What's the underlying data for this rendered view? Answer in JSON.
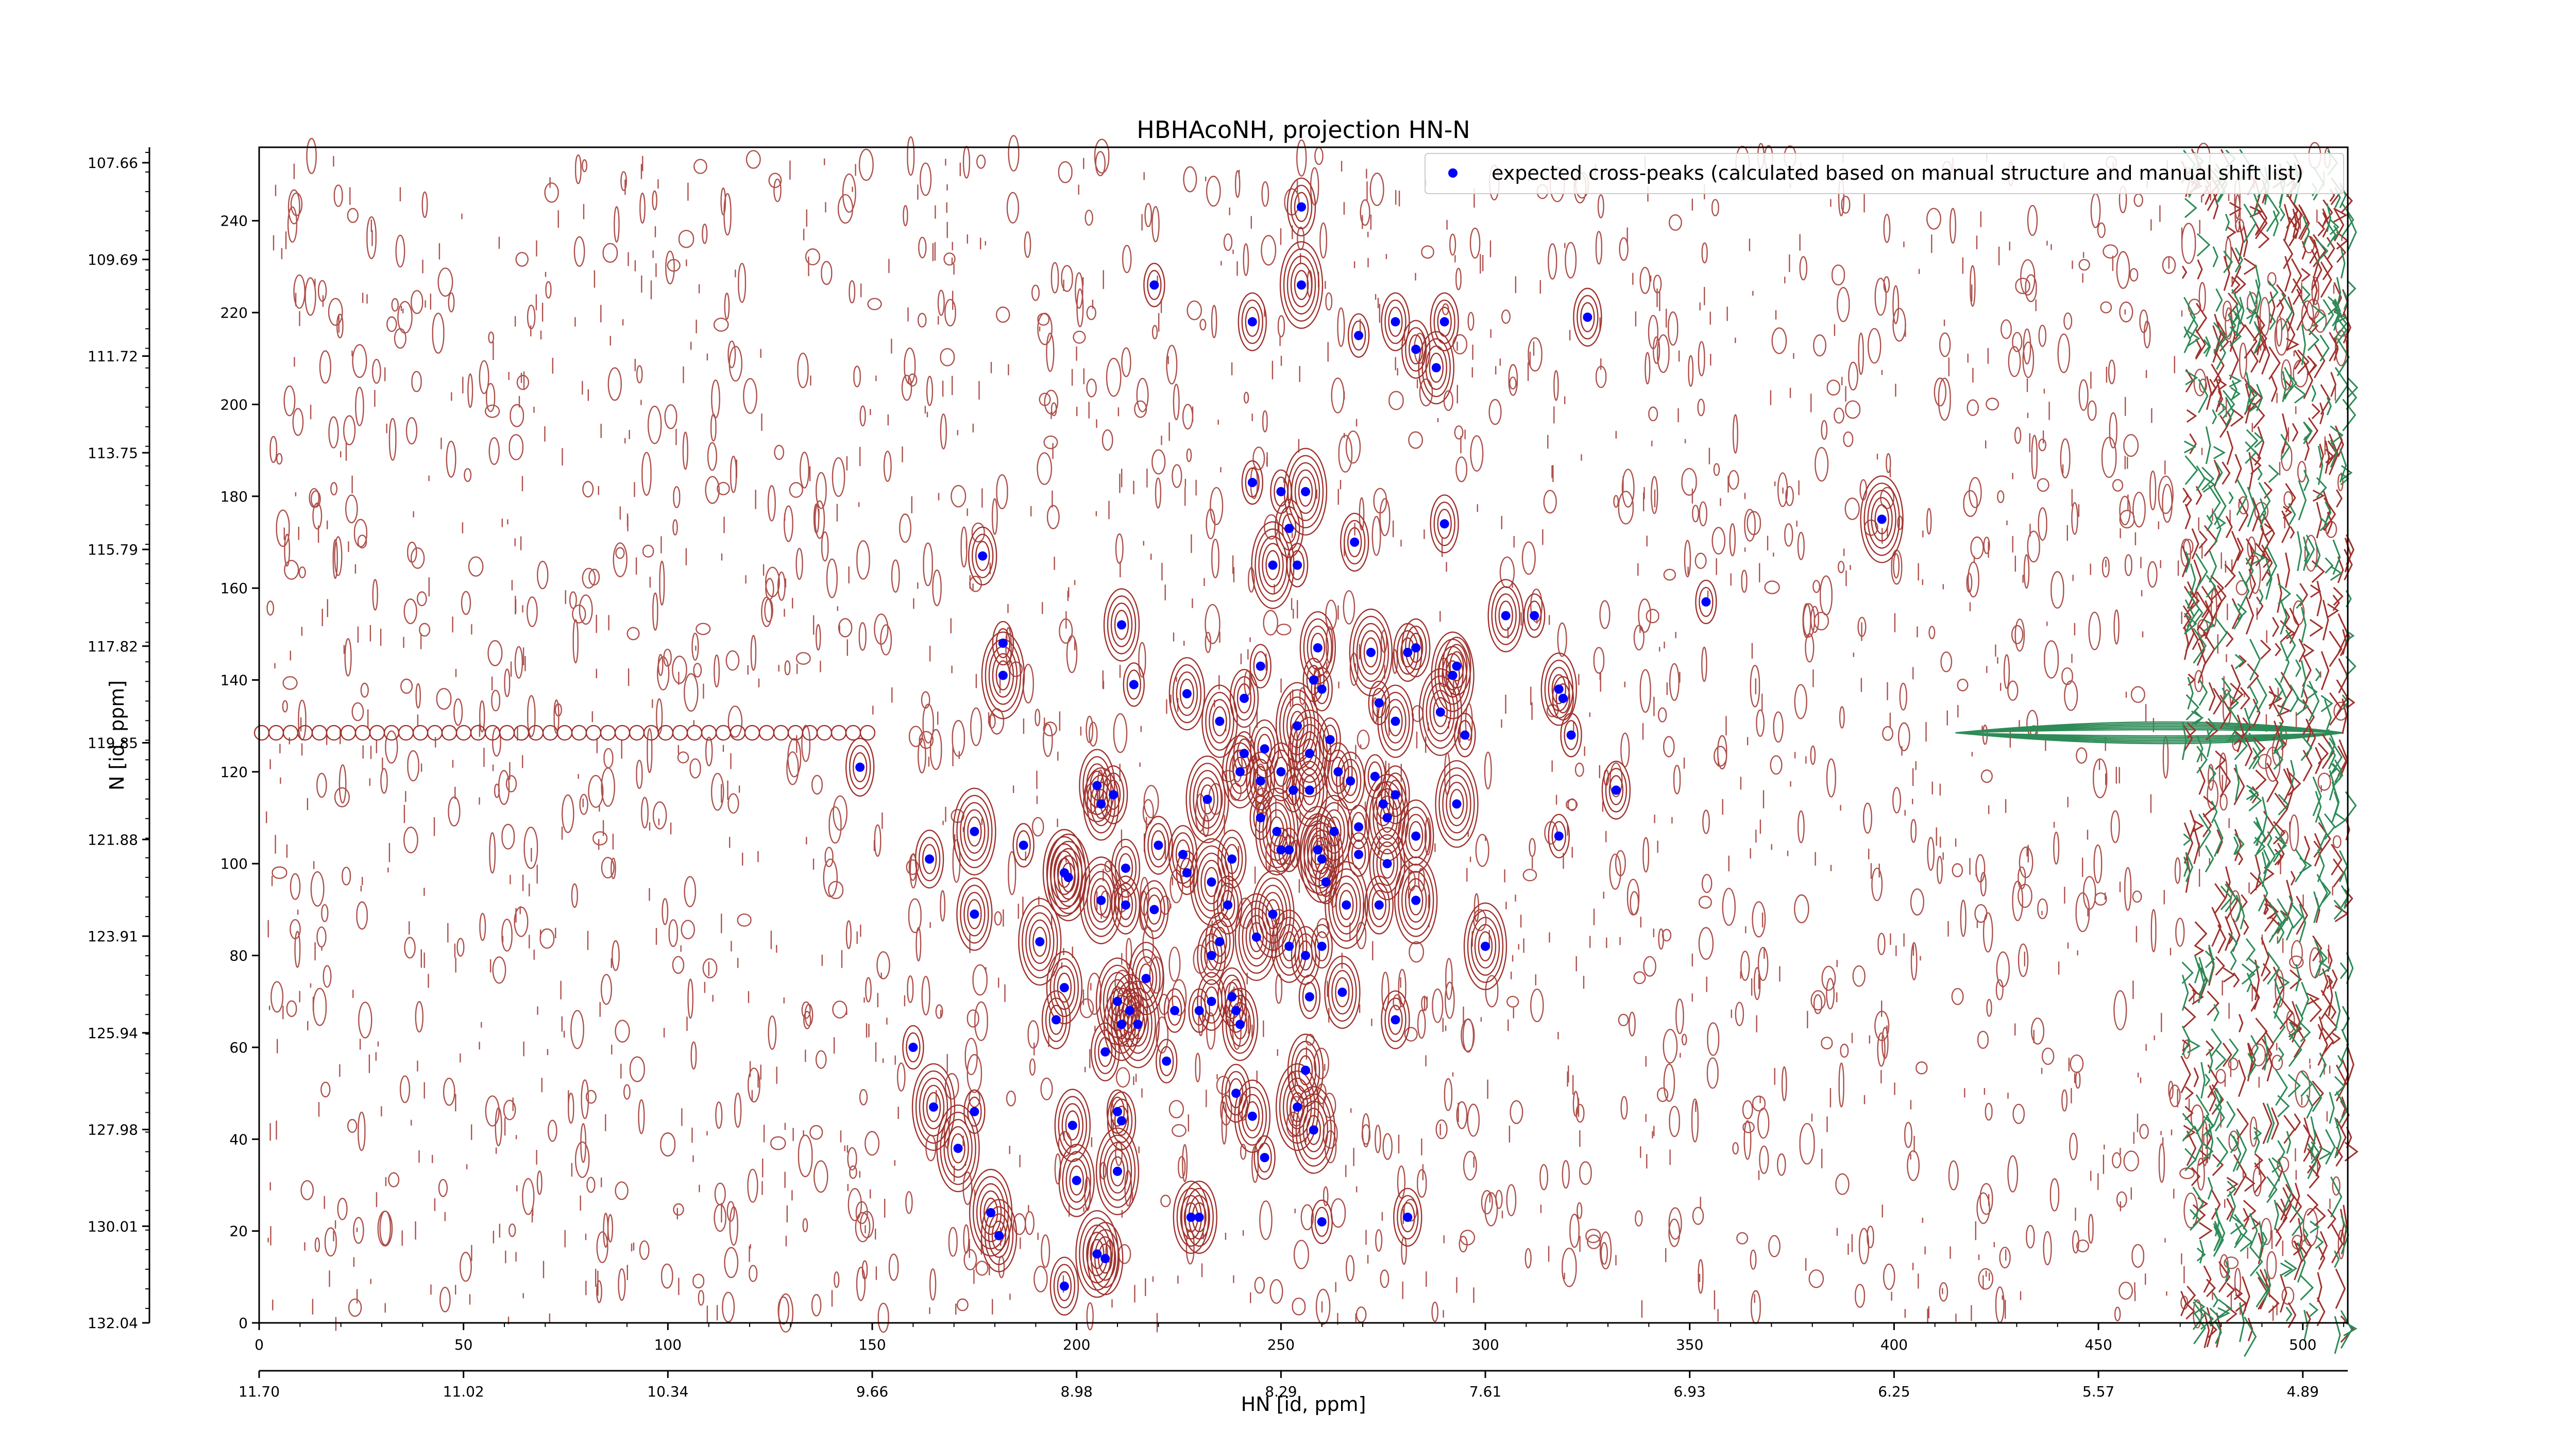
{
  "chart_data": {
    "type": "scatter",
    "title": "HBHAcoNH, projection HN-N",
    "xlabel": "HN [id, ppm]",
    "ylabel": "N [id, ppm]",
    "xlim": [
      0,
      511
    ],
    "ylim": [
      0,
      256
    ],
    "grid": false,
    "legend_position": "top-right",
    "x_ticks": [
      0,
      50,
      100,
      150,
      200,
      250,
      300,
      350,
      400,
      450,
      500
    ],
    "y_ticks": [
      0,
      20,
      40,
      60,
      80,
      100,
      120,
      140,
      160,
      180,
      200,
      220,
      240
    ],
    "x_ppm_ticks": [
      "11.70",
      "11.02",
      "10.34",
      "9.66",
      "8.98",
      "8.29",
      "7.61",
      "6.93",
      "6.25",
      "5.57",
      "4.89"
    ],
    "y_ppm_ticks": [
      "107.66",
      "109.69",
      "111.72",
      "113.75",
      "115.79",
      "117.82",
      "119.85",
      "121.88",
      "123.91",
      "125.94",
      "127.98",
      "130.01",
      "132.04"
    ],
    "colors": {
      "markers": "#0000ff",
      "contour_positive": "#a0322d",
      "contour_negative": "#2e8b57"
    },
    "series": [
      {
        "name": "expected cross-peaks (calculated based on manual structure and manual shift list)",
        "points": [
          [
            255,
            243
          ],
          [
            255,
            226
          ],
          [
            219,
            226
          ],
          [
            243,
            218
          ],
          [
            269,
            215
          ],
          [
            278,
            218
          ],
          [
            283,
            212
          ],
          [
            290,
            218
          ],
          [
            288,
            208
          ],
          [
            325,
            219
          ],
          [
            243,
            183
          ],
          [
            250,
            181
          ],
          [
            256,
            181
          ],
          [
            252,
            173
          ],
          [
            254,
            165
          ],
          [
            248,
            165
          ],
          [
            268,
            170
          ],
          [
            290,
            174
          ],
          [
            397,
            175
          ],
          [
            177,
            167
          ],
          [
            305,
            154
          ],
          [
            312,
            154
          ],
          [
            354,
            157
          ],
          [
            182,
            148
          ],
          [
            182,
            141
          ],
          [
            211,
            152
          ],
          [
            245,
            143
          ],
          [
            259,
            147
          ],
          [
            272,
            146
          ],
          [
            281,
            146
          ],
          [
            283,
            147
          ],
          [
            292,
            141
          ],
          [
            293,
            143
          ],
          [
            214,
            139
          ],
          [
            227,
            137
          ],
          [
            241,
            136
          ],
          [
            258,
            140
          ],
          [
            260,
            138
          ],
          [
            274,
            135
          ],
          [
            278,
            131
          ],
          [
            289,
            133
          ],
          [
            295,
            128
          ],
          [
            318,
            138
          ],
          [
            319,
            136
          ],
          [
            321,
            128
          ],
          [
            235,
            131
          ],
          [
            246,
            125
          ],
          [
            254,
            130
          ],
          [
            262,
            127
          ],
          [
            257,
            124
          ],
          [
            241,
            124
          ],
          [
            240,
            120
          ],
          [
            245,
            118
          ],
          [
            250,
            120
          ],
          [
            253,
            116
          ],
          [
            257,
            116
          ],
          [
            264,
            120
          ],
          [
            267,
            118
          ],
          [
            273,
            119
          ],
          [
            278,
            115
          ],
          [
            147,
            121
          ],
          [
            205,
            117
          ],
          [
            206,
            113
          ],
          [
            209,
            115
          ],
          [
            232,
            114
          ],
          [
            245,
            110
          ],
          [
            249,
            107
          ],
          [
            263,
            107
          ],
          [
            269,
            108
          ],
          [
            275,
            113
          ],
          [
            276,
            110
          ],
          [
            283,
            106
          ],
          [
            293,
            113
          ],
          [
            318,
            106
          ],
          [
            332,
            116
          ],
          [
            175,
            107
          ],
          [
            187,
            104
          ],
          [
            164,
            101
          ],
          [
            197,
            98
          ],
          [
            198,
            97
          ],
          [
            212,
            99
          ],
          [
            220,
            104
          ],
          [
            226,
            102
          ],
          [
            227,
            98
          ],
          [
            233,
            96
          ],
          [
            238,
            101
          ],
          [
            250,
            103
          ],
          [
            252,
            103
          ],
          [
            259,
            103
          ],
          [
            260,
            101
          ],
          [
            261,
            96
          ],
          [
            269,
            102
          ],
          [
            276,
            100
          ],
          [
            219,
            90
          ],
          [
            237,
            91
          ],
          [
            248,
            89
          ],
          [
            244,
            84
          ],
          [
            235,
            83
          ],
          [
            233,
            80
          ],
          [
            252,
            82
          ],
          [
            256,
            80
          ],
          [
            260,
            82
          ],
          [
            266,
            91
          ],
          [
            274,
            91
          ],
          [
            283,
            92
          ],
          [
            175,
            89
          ],
          [
            206,
            92
          ],
          [
            212,
            91
          ],
          [
            191,
            83
          ],
          [
            300,
            82
          ],
          [
            265,
            72
          ],
          [
            257,
            71
          ],
          [
            217,
            75
          ],
          [
            210,
            70
          ],
          [
            213,
            68
          ],
          [
            224,
            68
          ],
          [
            233,
            70
          ],
          [
            230,
            68
          ],
          [
            238,
            71
          ],
          [
            239,
            68
          ],
          [
            215,
            65
          ],
          [
            240,
            65
          ],
          [
            278,
            66
          ],
          [
            197,
            73
          ],
          [
            195,
            66
          ],
          [
            211,
            65
          ],
          [
            160,
            60
          ],
          [
            207,
            59
          ],
          [
            222,
            57
          ],
          [
            256,
            55
          ],
          [
            239,
            50
          ],
          [
            243,
            45
          ],
          [
            254,
            47
          ],
          [
            165,
            47
          ],
          [
            175,
            46
          ],
          [
            199,
            43
          ],
          [
            210,
            46
          ],
          [
            211,
            44
          ],
          [
            171,
            38
          ],
          [
            246,
            36
          ],
          [
            210,
            33
          ],
          [
            258,
            42
          ],
          [
            200,
            31
          ],
          [
            179,
            24
          ],
          [
            181,
            19
          ],
          [
            230,
            23
          ],
          [
            228,
            23
          ],
          [
            260,
            22
          ],
          [
            281,
            23
          ],
          [
            205,
            15
          ],
          [
            197,
            8
          ],
          [
            207,
            14
          ]
        ]
      }
    ]
  }
}
